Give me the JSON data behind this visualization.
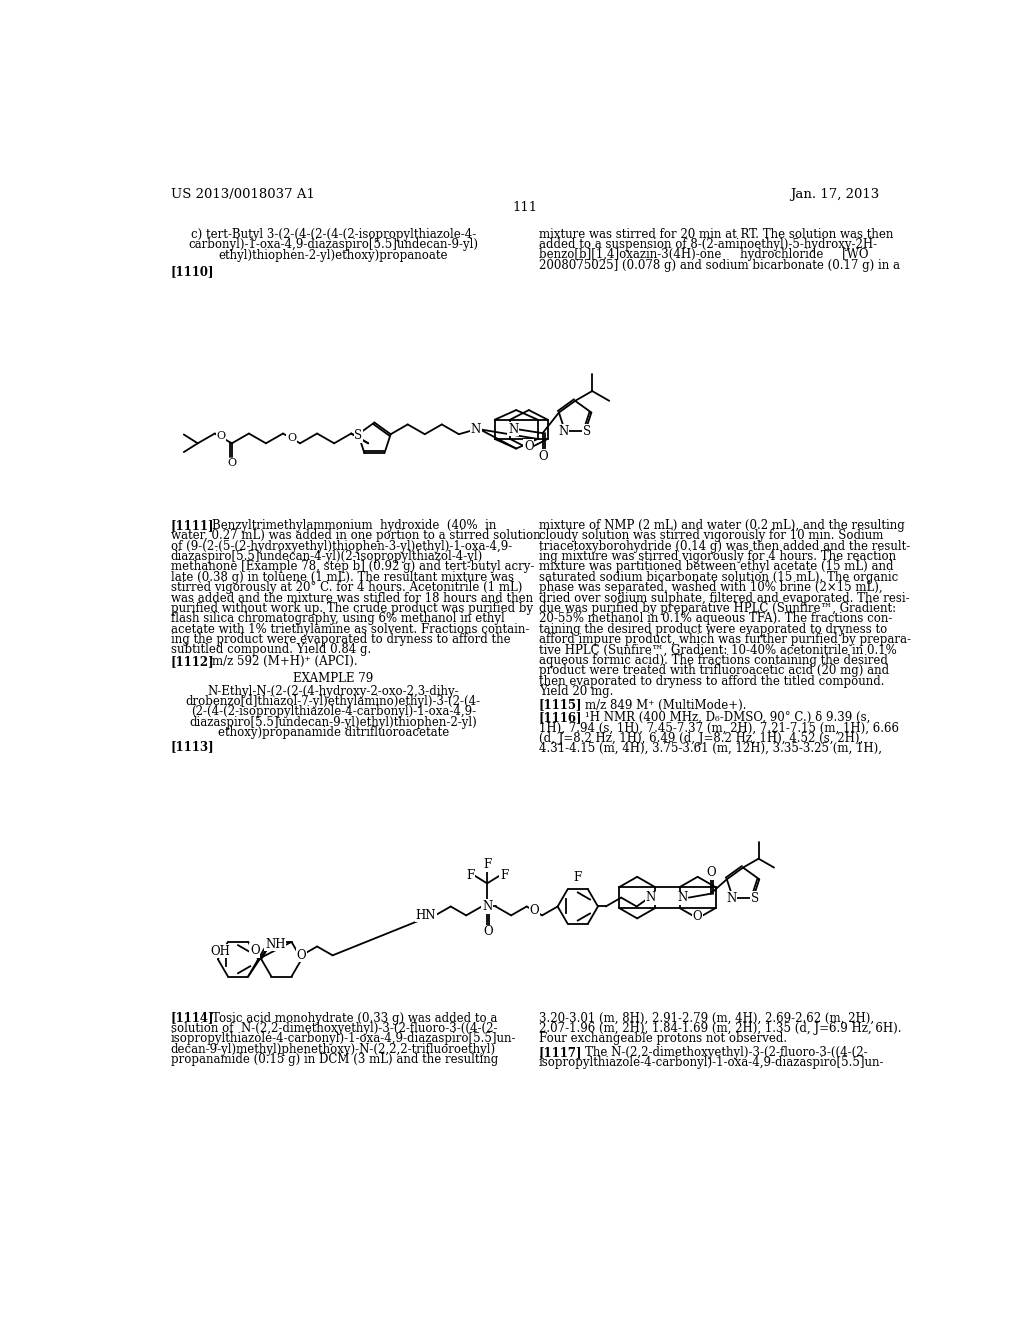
{
  "page_header_left": "US 2013/0018037 A1",
  "page_header_right": "Jan. 17, 2013",
  "page_number": "111",
  "background_color": "#ffffff",
  "text_color": "#000000",
  "section_c_title_line1": "c) tert-Butyl 3-(2-(4-(2-(4-(2-isopropylthiazole-4-",
  "section_c_title_line2": "carbonyl)-1-oxa-4,9-diazaspiro[5.5]undecan-9-yl)",
  "section_c_title_line3": "ethyl)thiophen-2-yl)ethoxy)propanoate",
  "para_1110_label": "[1110]",
  "right_col_top_lines": [
    "mixture was stirred for 20 min at RT. The solution was then",
    "added to a suspension of 8-(2-aminoethyl)-5-hydroxy-2H-",
    "benzo[b][1,4]oxazin-3(4H)-one     hydrochloride     [WO",
    "2008075025] (0.078 g) and sodium bicarbonate (0.17 g) in a"
  ],
  "para_1111_label": "[1111]",
  "para_1111_lines": [
    "Benzyltrimethylammonium  hydroxide  (40%  in",
    "water, 0.27 mL) was added in one portion to a stirred solution",
    "of (9-(2-(5-(2-hydroxyethyl)thiophen-3-yl)ethyl)-1-oxa-4,9-",
    "diazaspiro[5.5]undecan-4-yl)(2-isopropylthiazol-4-yl)",
    "methanone [Example 78, step b] (0.92 g) and tert-butyl acry-",
    "late (0.38 g) in toluene (1 mL). The resultant mixture was",
    "stirred vigorously at 20° C. for 4 hours. Acetonitrile (1 mL)",
    "was added and the mixture was stifled for 18 hours and then",
    "purified without work up. The crude product was purified by",
    "flash silica chromatography, using 6% methanol in ethyl",
    "acetate with 1% triethylamine as solvent. Fractions contain-",
    "ing the product were evaporated to dryness to afford the",
    "subtitled compound. Yield 0.84 g."
  ],
  "para_1112_label": "[1112]",
  "para_1112_text": "m/z 592 (M+H)⁺ (APCI).",
  "example79_title": "EXAMPLE 79",
  "example79_lines": [
    "N-Ethyl-N-(2-(2-(4-hydroxy-2-oxo-2,3-dihy-",
    "drobenzo[d]thiazol-7-yl)ethylamino)ethyl)-3-(2-(4-",
    "(2-(4-(2-isopropylthiazole-4-carbonyl)-1-oxa-4,9-",
    "diazaspiro[5.5]undecan-9-yl)ethyl)thiophen-2-yl)",
    "ethoxy)propanamide ditrifluoroacetate"
  ],
  "para_1113_label": "[1113]",
  "right_col_middle_lines": [
    "mixture of NMP (2 mL) and water (0.2 mL), and the resulting",
    "cloudy solution was stirred vigorously for 10 min. Sodium",
    "triacetoxyborohydride (0.14 g) was then added and the result-",
    "ing mixture was stirred vigorously for 4 hours. The reaction",
    "mixture was partitioned between ethyl acetate (15 mL) and",
    "saturated sodium bicarbonate solution (15 mL). The organic",
    "phase was separated, washed with 10% brine (2×15 mL),",
    "dried over sodium sulphate, filtered and evaporated. The resi-",
    "due was purified by preparative HPLC (Sunfire™, Gradient:",
    "20-55% methanol in 0.1% aqueous TFA). The fractions con-",
    "taining the desired product were evaporated to dryness to",
    "afford impure product, which was further purified by prepara-",
    "tive HPLC (Sunfire™, Gradient: 10-40% acetonitrile in 0.1%",
    "aqueous formic acid). The fractions containing the desired",
    "product were treated with trifluoroacetic acid (20 mg) and",
    "then evaporated to dryness to afford the titled compound.",
    "Yield 20 mg."
  ],
  "para_1115_label": "[1115]",
  "para_1115_text": "m/z 849 M⁺ (MultiMode+).",
  "para_1116_label": "[1116]",
  "para_1116_lines": [
    "¹H NMR (400 MHz, D₆-DMSO, 90° C.) δ 9.39 (s,",
    "1H), 7.94 (s, 1H), 7.45-7.37 (m, 2H), 7.21-7.15 (m, 1H), 6.66",
    "(d, J=8.2 Hz, 1H), 6.49 (d, J=8.2 Hz, 1H), 4.52 (s, 2H),",
    "4.31-4.15 (m, 4H), 3.75-3.61 (m, 12H), 3.35-3.25 (m, 1H),"
  ],
  "para_1114_label": "[1114]",
  "para_1114_lines": [
    "Tosic acid monohydrate (0.33 g) was added to a",
    "solution of  N-(2,2-dimethoxyethyl)-3-(2-fluoro-3-((4-(2-",
    "isopropylthiazole-4-carbonyl)-1-oxa-4,9-diazaspiro[5.5]un-",
    "decan-9-yl)methyl)phenethoxy)-N-(2,2,2-trifluoroethyl)",
    "propanamide (0.15 g) in DCM (3 mL) and the resulting"
  ],
  "right_col_bottom_lines": [
    "3.20-3.01 (m, 8H), 2.91-2.79 (m, 4H), 2.69-2.62 (m, 2H),",
    "2.07-1.96 (m, 2H), 1.84-1.69 (m, 2H), 1.35 (d, J=6.9 Hz, 6H).",
    "Four exchangeable protons not observed."
  ],
  "para_1117_label": "[1117]",
  "para_1117_lines": [
    "The N-(2,2-dimethoxyethyl)-3-(2-fluoro-3-((4-(2-",
    "isopropylthiazole-4-carbonyl)-1-oxa-4,9-diazaspiro[5.5]un-"
  ]
}
